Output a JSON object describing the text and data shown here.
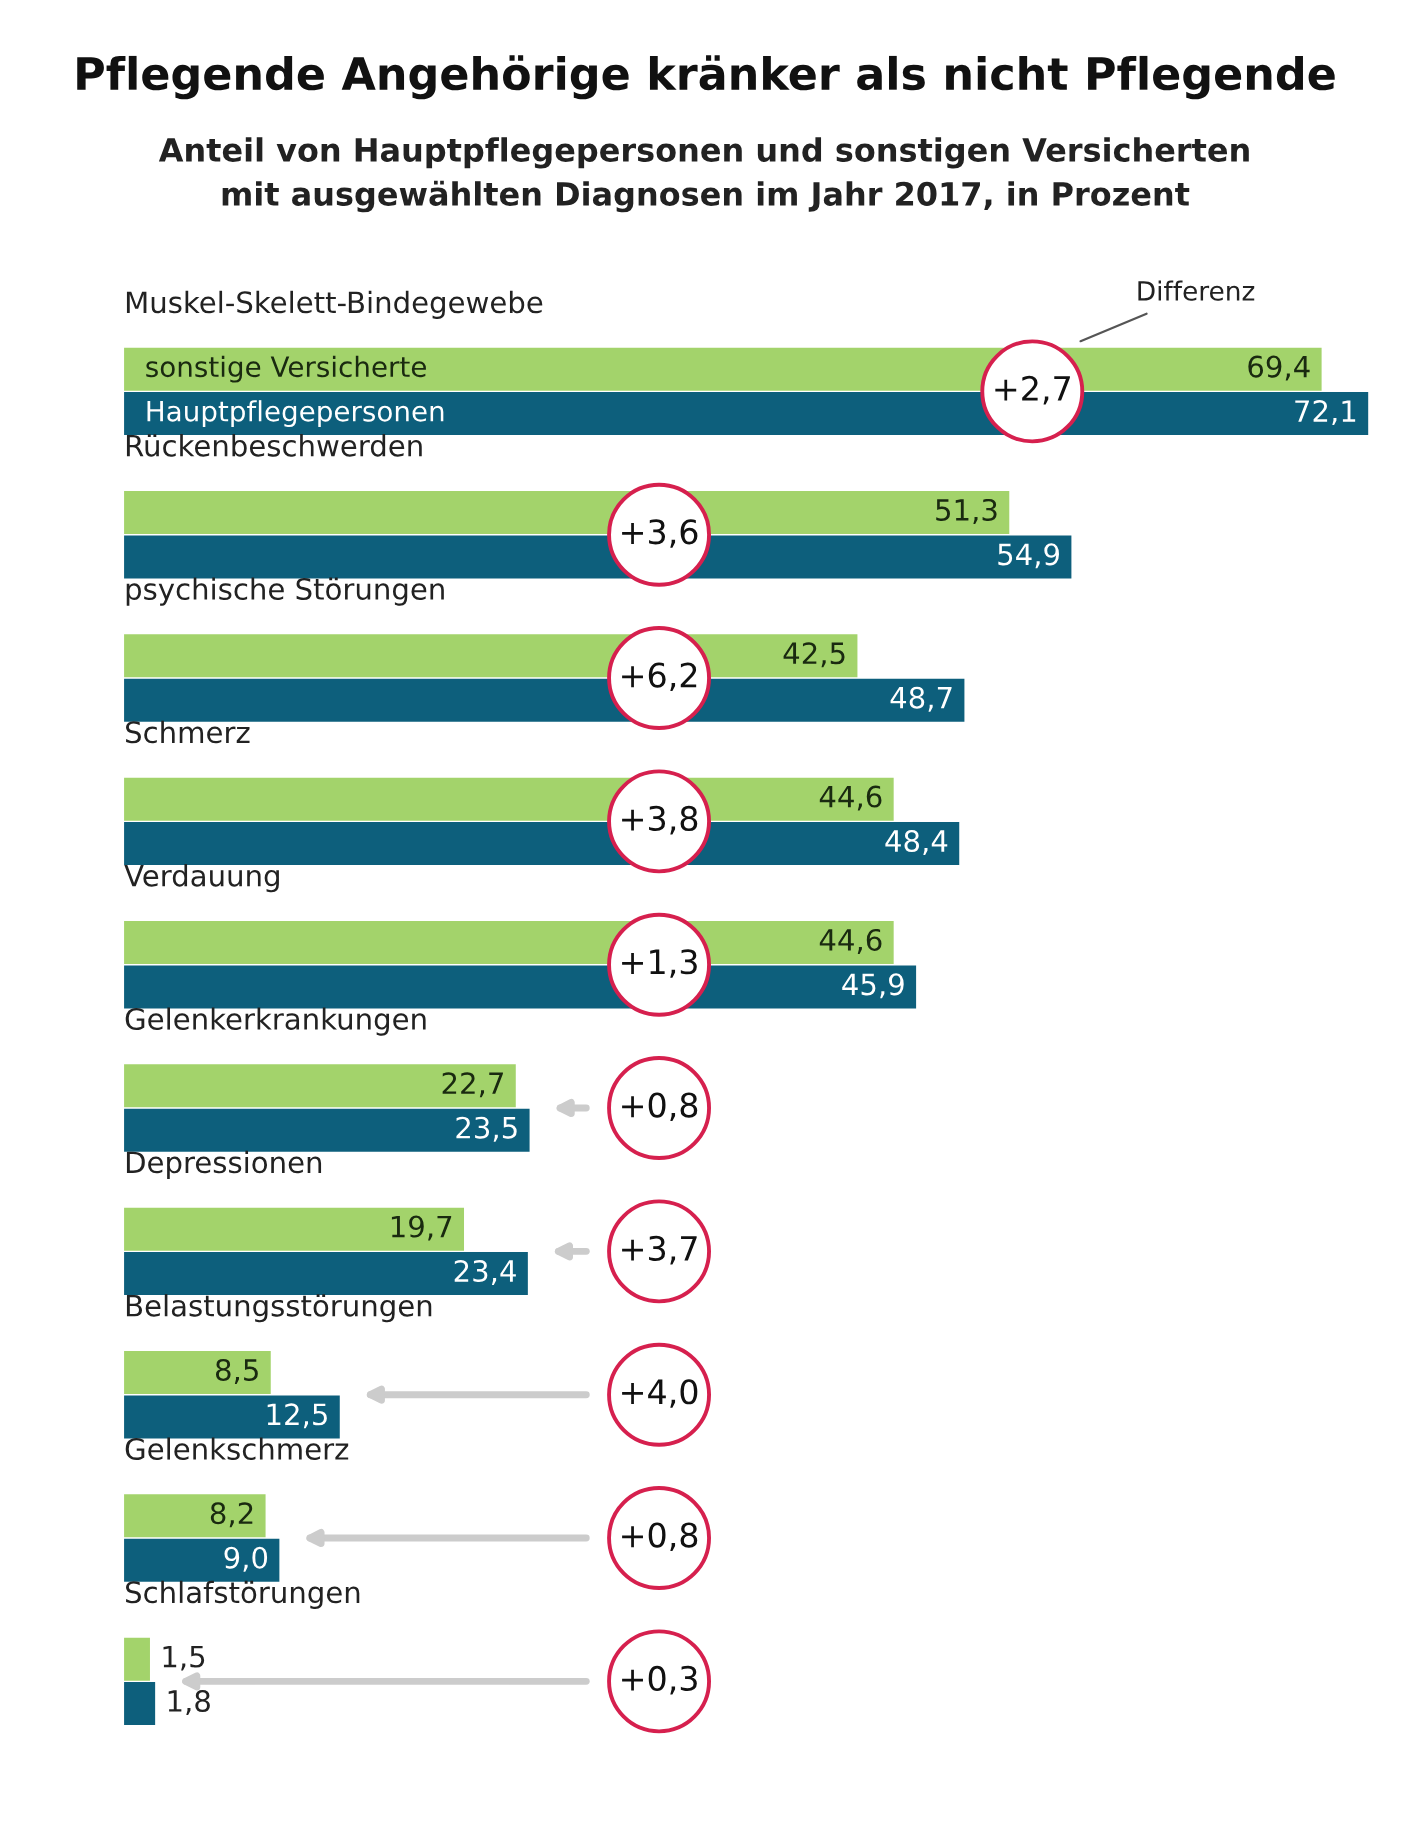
{
  "chart_data": {
    "type": "bar",
    "orientation": "horizontal",
    "title": "Pflegende Angehörige kränker als nicht Pflegende",
    "subtitle": "Anteil von Hauptpflegepersonen und sonstigen Versicherten\nmit ausgewählten Diagnosen im Jahr 2017, in Prozent",
    "categories": [
      "Muskel-Skelett-Bindegewebe",
      "Rückenbeschwerden",
      "psychische Störungen",
      "Schmerz",
      "Verdauung",
      "Gelenkerkrankungen",
      "Depressionen",
      "Belastungsstörungen",
      "Gelenkschmerz",
      "Schlafstörungen"
    ],
    "series": [
      {
        "name": "sonstige Versicherte",
        "color": "#a3d36b",
        "values": [
          69.4,
          51.3,
          42.5,
          44.6,
          44.6,
          22.7,
          19.7,
          8.5,
          8.2,
          1.5
        ],
        "value_labels": [
          "69,4",
          "51,3",
          "42,5",
          "44,6",
          "44,6",
          "22,7",
          "19,7",
          "8,5",
          "8,2",
          "1,5"
        ]
      },
      {
        "name": "Hauptpflegepersonen",
        "color": "#0d5f7c",
        "values": [
          72.1,
          54.9,
          48.7,
          48.4,
          45.9,
          23.5,
          23.4,
          12.5,
          9.0,
          1.8
        ],
        "value_labels": [
          "72,1",
          "54,9",
          "48,7",
          "48,4",
          "45,9",
          "23,5",
          "23,4",
          "12,5",
          "9,0",
          "1,8"
        ]
      }
    ],
    "annotations": [
      "Differenz",
      "+2,7",
      "+3,6",
      "+6,2",
      "+3,8",
      "+1,3",
      "+0,8",
      "+3,7",
      "+4,0",
      "+0,8",
      "+0,3"
    ],
    "legend": false
  }
}
